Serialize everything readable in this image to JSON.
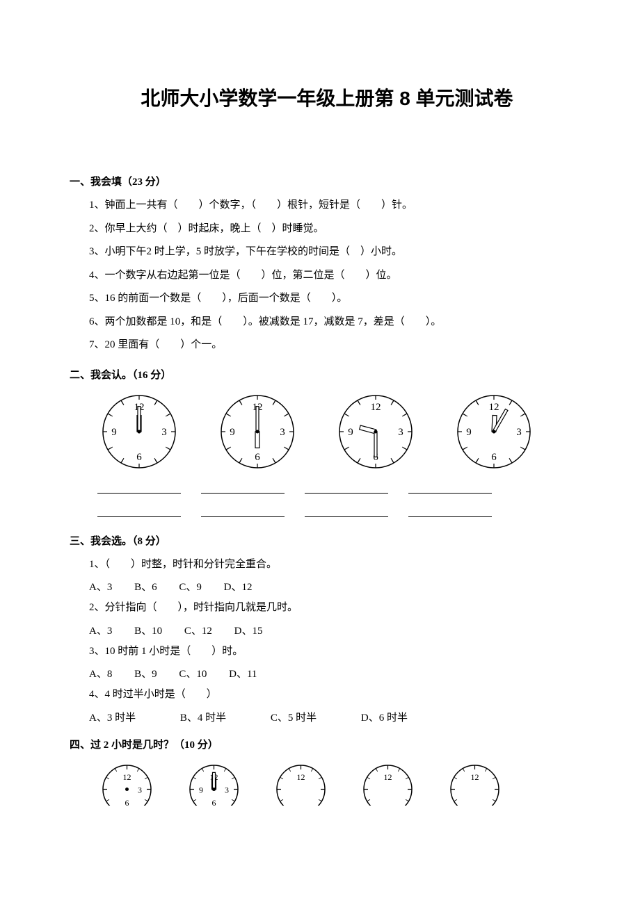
{
  "title": "北师大小学数学一年级上册第 8 单元测试卷",
  "sections": {
    "s1": {
      "header": "一、我会填（23 分）",
      "q1": "1、钟面上一共有（　　）个数字，（　　）根针，短针是（　　）针。",
      "q2": "2、你早上大约（　）时起床，晚上（　）时睡觉。",
      "q3": "3、小明下午2 时上学，5 时放学，下午在学校的时间是（　）小时。",
      "q4": "4、一个数字从右边起第一位是（　　）位，第二位是（　　）位。",
      "q5": "5、16 的前面一个数是（　　），后面一个数是（　　）。",
      "q6": "6、两个加数都是 10，和是（　　）。被减数是 17，减数是 7，差是（　　）。",
      "q7": "7、20 里面有（　　）个一。"
    },
    "s2": {
      "header": "二、我会认。（16 分）",
      "clocks": [
        {
          "hour": 12,
          "minute": 0,
          "size": 120
        },
        {
          "hour": 6,
          "minute": 0,
          "size": 120
        },
        {
          "hour": 9,
          "minute": 30,
          "size": 120
        },
        {
          "hour": 12,
          "minute": 5,
          "size": 120
        }
      ]
    },
    "s3": {
      "header": "三、我会选。（8 分）",
      "q1": "1、（　　）时整，时针和分针完全重合。",
      "q1opts": {
        "A": "A、3",
        "B": "B、6",
        "C": "C、9",
        "D": "D、12"
      },
      "q2": "2、分针指向（　　），时针指向几就是几时。",
      "q2opts": {
        "A": "A、3",
        "B": "B、10",
        "C": "C、12",
        "D": "D、15"
      },
      "q3": "3、10 时前 1 小时是（　　）时。",
      "q3opts": {
        "A": "A、8",
        "B": "B、9",
        "C": "C、10",
        "D": "D、11"
      },
      "q4": "4、4 时过半小时是（　　）",
      "q4opts": {
        "A": "A、3 时半",
        "B": "B、4 时半",
        "C": "C、5 时半",
        "D": "D、6 时半"
      }
    },
    "s4": {
      "header": "四、过 2 小时是几时？（10 分）",
      "clocks": [
        {
          "hour": null,
          "minute": null,
          "size": 85,
          "numbers": [
            "12",
            "3",
            "6"
          ],
          "cut": true,
          "dot": true
        },
        {
          "hour": 12,
          "minute": 0,
          "size": 85,
          "numbers": [
            "12",
            "3",
            "6",
            "9"
          ],
          "cut": true
        },
        {
          "hour": null,
          "minute": null,
          "size": 85,
          "numbers": [
            "12"
          ],
          "cut": true
        },
        {
          "hour": null,
          "minute": null,
          "size": 85,
          "numbers": [
            "12"
          ],
          "cut": true
        },
        {
          "hour": null,
          "minute": null,
          "size": 85,
          "numbers": [
            "12"
          ],
          "cut": true
        }
      ]
    }
  },
  "style": {
    "clock": {
      "stroke": "#000000",
      "stroke_width": 1.5,
      "number_fontsize": 15,
      "tick_len": 6,
      "hand_stroke": 2
    }
  }
}
